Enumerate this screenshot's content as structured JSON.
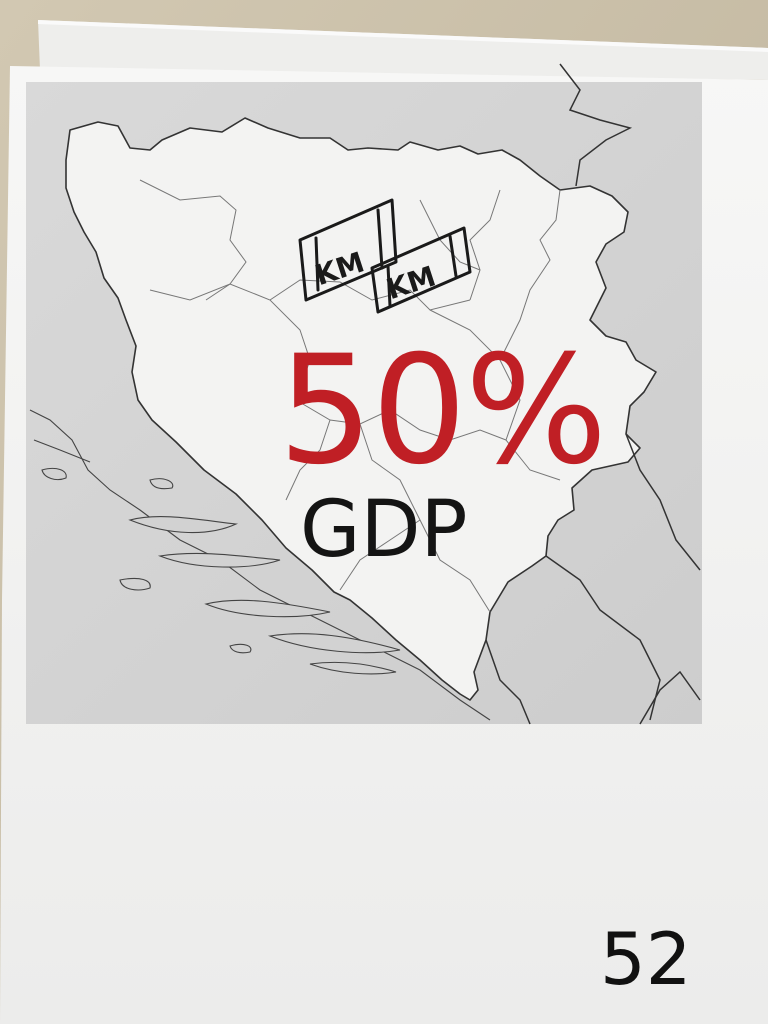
{
  "photo": {
    "background_color": "#c9bea6",
    "paper_color": "#f4f4f3",
    "map_background_color": "#d6d6d6",
    "highlighted_country_color": "#f2f2f2"
  },
  "map": {
    "subject": "Bosnia and Herzegovina",
    "neighbors_shown": [
      "Croatia",
      "Serbia",
      "Montenegro"
    ],
    "coastline": "Adriatic islands",
    "border_color": "#3a3a3a"
  },
  "annotations": {
    "currency_label_1": "KM",
    "currency_label_2": "KM",
    "headline_value": "50%",
    "headline_color": "#c01f25",
    "subtitle": "GDP",
    "subtitle_color": "#141414"
  },
  "page_number": "52"
}
